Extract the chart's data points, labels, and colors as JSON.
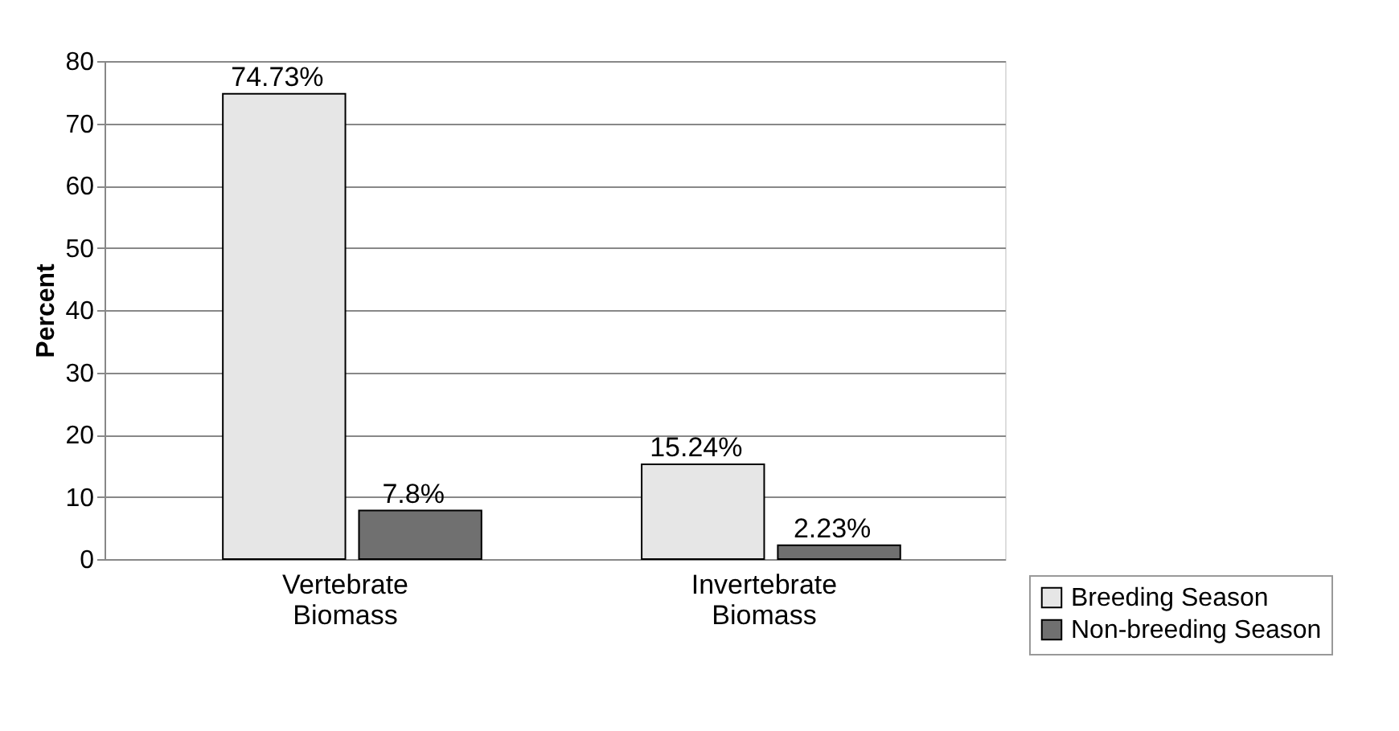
{
  "chart_data": {
    "type": "bar",
    "ylabel": "Percent",
    "categories": [
      "Vertebrate Biomass",
      "Invertebrate Biomass"
    ],
    "series": [
      {
        "name": "Breeding Season",
        "color": "#e6e6e6",
        "values": [
          74.73,
          15.24
        ],
        "value_labels": [
          "74.73%",
          "15.24%"
        ]
      },
      {
        "name": "Non-breeding Season",
        "color": "#707070",
        "values": [
          7.8,
          2.23
        ],
        "value_labels": [
          "7.8%",
          "2.23%"
        ]
      }
    ],
    "ylim": [
      0,
      80
    ],
    "yticks": [
      0,
      10,
      20,
      30,
      40,
      50,
      60,
      70,
      80
    ],
    "grid": "y",
    "legend": "bottom right"
  }
}
